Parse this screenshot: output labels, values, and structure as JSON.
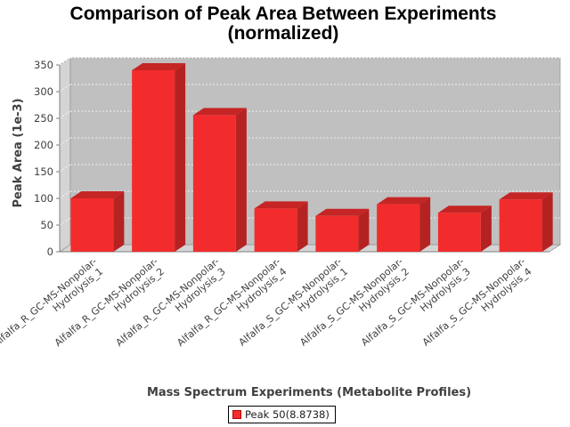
{
  "chart_data": {
    "type": "bar",
    "title": "Comparison of Peak Area Between Experiments",
    "subtitle": "(normalized)",
    "xlabel": "Mass Spectrum Experiments (Metabolite Profiles)",
    "ylabel": "Peak Area (1e-3)",
    "ylim": [
      0,
      350
    ],
    "yticks": [
      0,
      50,
      100,
      150,
      200,
      250,
      300,
      350
    ],
    "categories": [
      [
        "Alfalfa_R_GC-MS-Nonpolar-",
        "Hydrolysis_1"
      ],
      [
        "Alfalfa_R_GC-MS-Nonpolar-",
        "Hydrolysis_2"
      ],
      [
        "Alfalfa_R_GC-MS-Nonpolar-",
        "Hydrolysis_3"
      ],
      [
        "Alfalfa_R_GC-MS-Nonpolar-",
        "Hydrolysis_4"
      ],
      [
        "Alfalfa_S_GC-MS-Nonpolar-",
        "Hydrolysis_1"
      ],
      [
        "Alfalfa_S_GC-MS-Nonpolar-",
        "Hydrolysis_2"
      ],
      [
        "Alfalfa_S_GC-MS-Nonpolar-",
        "Hydrolysis_3"
      ],
      [
        "Alfalfa_S_GC-MS-Nonpolar-",
        "Hydrolysis_4"
      ]
    ],
    "series": [
      {
        "name": "Peak 50(8.8738)",
        "values": [
          100,
          340,
          256,
          81,
          67,
          89,
          73,
          98
        ]
      }
    ],
    "grid": true,
    "legend_position": "bottom",
    "colors": {
      "bar": "#f22c2c",
      "bar_top": "#c62525",
      "bar_side": "#b52222",
      "plot_bg": "#c0c0c0",
      "wall": "#d4d4d4"
    }
  }
}
